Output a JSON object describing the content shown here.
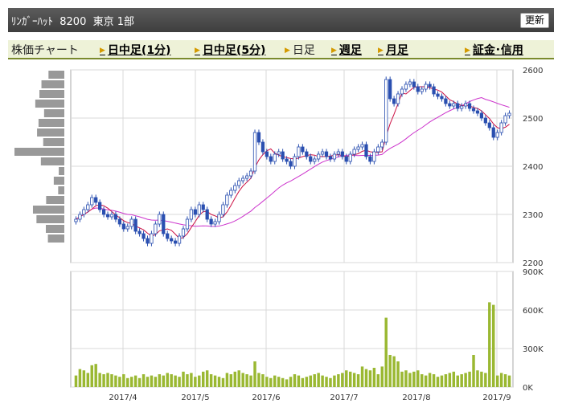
{
  "header": {
    "title": "ﾘﾝｶﾞｰﾊｯﾄ  8200  東京 1部",
    "refresh_label": "更新"
  },
  "tabs": [
    {
      "label": "株価チャート",
      "link": false,
      "arrow": false
    },
    {
      "label": "日中足(1分)",
      "link": true,
      "arrow": true
    },
    {
      "label": "日中足(5分)",
      "link": true,
      "arrow": true
    },
    {
      "label": "日足",
      "link": false,
      "arrow": true
    },
    {
      "label": "週足",
      "link": true,
      "arrow": true
    },
    {
      "label": "月足",
      "link": true,
      "arrow": true
    },
    {
      "label": "証金･信用",
      "link": true,
      "arrow": true
    }
  ],
  "colors": {
    "candle": "#2a4fb0",
    "ma_short": "#cc1144",
    "ma_long": "#cc33cc",
    "volume": "#9ab832",
    "profile": "#999999",
    "grid": "#d8d8d8"
  },
  "chart_data": [
    {
      "type": "candlestick",
      "ylim": [
        2200,
        2600
      ],
      "y_ticks": [
        "2600",
        "2500",
        "2400",
        "2300",
        "2200"
      ],
      "x_labels": [
        "2017/4",
        "2017/5",
        "2017/6",
        "2017/7",
        "2017/8",
        "2017/9"
      ],
      "closes": [
        2290,
        2300,
        2310,
        2320,
        2335,
        2325,
        2310,
        2300,
        2295,
        2300,
        2290,
        2280,
        2270,
        2275,
        2290,
        2265,
        2260,
        2250,
        2240,
        2260,
        2280,
        2300,
        2260,
        2250,
        2245,
        2240,
        2255,
        2270,
        2290,
        2310,
        2300,
        2320,
        2310,
        2290,
        2280,
        2285,
        2300,
        2320,
        2340,
        2350,
        2360,
        2370,
        2375,
        2380,
        2390,
        2470,
        2450,
        2430,
        2420,
        2410,
        2425,
        2430,
        2415,
        2410,
        2400,
        2420,
        2440,
        2430,
        2420,
        2410,
        2415,
        2425,
        2430,
        2420,
        2415,
        2425,
        2430,
        2420,
        2410,
        2425,
        2435,
        2440,
        2445,
        2420,
        2410,
        2430,
        2440,
        2450,
        2580,
        2540,
        2530,
        2550,
        2560,
        2570,
        2575,
        2565,
        2555,
        2560,
        2570,
        2565,
        2550,
        2545,
        2540,
        2530,
        2525,
        2530,
        2520,
        2525,
        2530,
        2520,
        2515,
        2510,
        2500,
        2490,
        2480,
        2460,
        2470,
        2490,
        2505,
        2510
      ]
    },
    {
      "type": "bar",
      "title": "volume",
      "ylim": [
        0,
        900000
      ],
      "y_ticks": [
        "900K",
        "600K",
        "300K",
        "0K"
      ],
      "values": [
        90000,
        140000,
        130000,
        110000,
        170000,
        180000,
        110000,
        100000,
        110000,
        100000,
        90000,
        80000,
        100000,
        70000,
        80000,
        90000,
        70000,
        100000,
        80000,
        90000,
        80000,
        100000,
        90000,
        110000,
        100000,
        90000,
        80000,
        120000,
        100000,
        110000,
        80000,
        90000,
        120000,
        130000,
        100000,
        90000,
        80000,
        70000,
        110000,
        100000,
        120000,
        130000,
        110000,
        100000,
        90000,
        200000,
        110000,
        100000,
        80000,
        70000,
        90000,
        80000,
        70000,
        60000,
        80000,
        100000,
        90000,
        70000,
        80000,
        90000,
        100000,
        110000,
        90000,
        80000,
        70000,
        90000,
        100000,
        110000,
        130000,
        120000,
        110000,
        100000,
        160000,
        140000,
        130000,
        150000,
        100000,
        160000,
        540000,
        250000,
        240000,
        200000,
        120000,
        130000,
        110000,
        120000,
        130000,
        100000,
        90000,
        110000,
        100000,
        80000,
        90000,
        100000,
        110000,
        120000,
        90000,
        100000,
        110000,
        120000,
        250000,
        130000,
        120000,
        110000,
        660000,
        640000,
        90000,
        110000,
        100000,
        90000
      ]
    }
  ]
}
